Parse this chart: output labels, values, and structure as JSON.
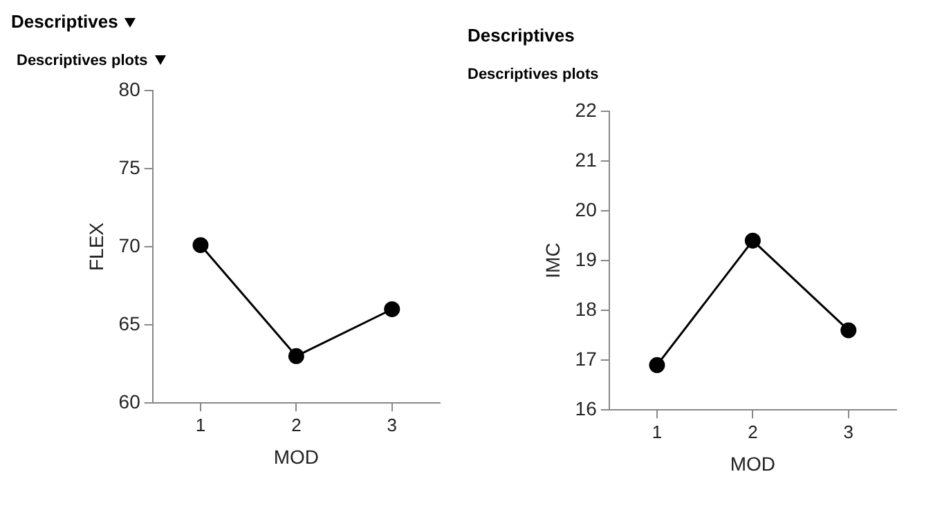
{
  "chart_data": [
    {
      "type": "line",
      "title": "Descriptives",
      "subtitle": "Descriptives plots",
      "xlabel": "MOD",
      "ylabel": "FLEX",
      "categories": [
        "1",
        "2",
        "3"
      ],
      "series": [
        {
          "color": "#000000",
          "values": [
            70.1,
            63.0,
            66.0
          ]
        }
      ],
      "ylim": [
        60,
        80
      ],
      "yticks": [
        60,
        65,
        70,
        75,
        80
      ],
      "grid": false,
      "legend": false,
      "marker": "circle",
      "line_style": "solid"
    },
    {
      "type": "line",
      "title": "Descriptives",
      "subtitle": "Descriptives plots",
      "xlabel": "MOD",
      "ylabel": "IMC",
      "categories": [
        "1",
        "2",
        "3"
      ],
      "series": [
        {
          "color": "#000000",
          "values": [
            16.9,
            19.4,
            17.6
          ]
        }
      ],
      "ylim": [
        16,
        22
      ],
      "yticks": [
        16,
        17,
        18,
        19,
        20,
        21,
        22
      ],
      "grid": false,
      "legend": false,
      "marker": "circle",
      "line_style": "solid"
    }
  ]
}
